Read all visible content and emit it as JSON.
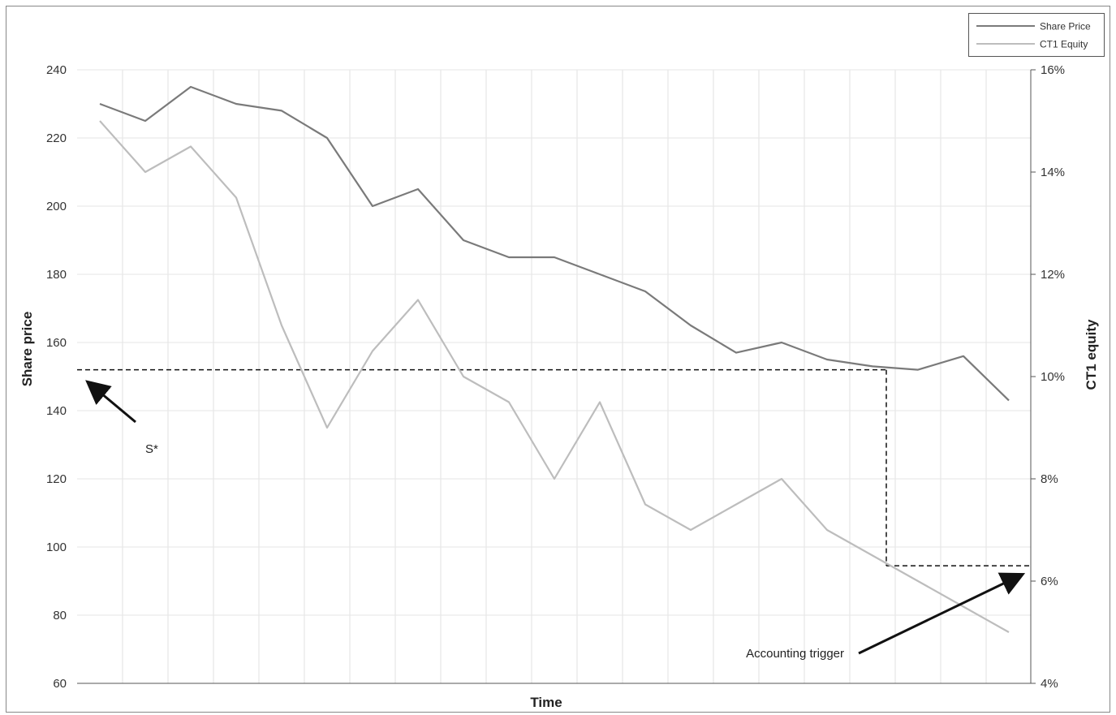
{
  "chart_data": {
    "type": "line",
    "title": "",
    "xlabel": "Time",
    "ylabel_left": "Share price",
    "ylabel_right": "CT1 equity",
    "x_count": 21,
    "ylim_left": [
      60,
      240
    ],
    "yticks_left": [
      "60",
      "80",
      "100",
      "120",
      "140",
      "160",
      "180",
      "200",
      "220",
      "240"
    ],
    "ylim_right": [
      4,
      16
    ],
    "yticks_right": [
      "4%",
      "6%",
      "8%",
      "10%",
      "12%",
      "14%",
      "16%"
    ],
    "grid": "vertical",
    "legend_position": "top-right",
    "series": [
      {
        "name": "Share Price",
        "axis": "left",
        "color": "#7a7a7a",
        "values": [
          230,
          225,
          235,
          230,
          228,
          220,
          200,
          205,
          190,
          185,
          185,
          180,
          175,
          165,
          157,
          160,
          155,
          153,
          152,
          156,
          143
        ]
      },
      {
        "name": "CT1 Equity",
        "axis": "right",
        "color": "#bdbdbd",
        "values": [
          15.0,
          14.0,
          14.5,
          13.5,
          11.0,
          9.0,
          10.5,
          11.5,
          10.0,
          9.5,
          8.0,
          9.5,
          7.5,
          7.0,
          7.5,
          8.0,
          7.0,
          6.5,
          6.0,
          5.5,
          5.0
        ]
      }
    ],
    "annotations": [
      {
        "label": "S*",
        "share_price_level": 152
      },
      {
        "label": "Accounting trigger",
        "ct1_level": 6.3
      }
    ]
  }
}
